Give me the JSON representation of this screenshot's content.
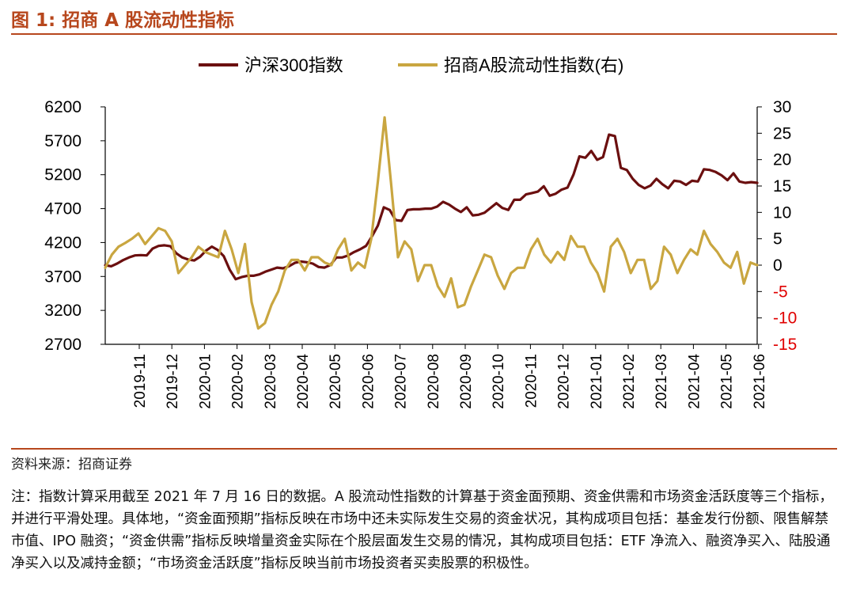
{
  "figure": {
    "title": "图 1: 招商 A 股流动性指标"
  },
  "chart_data": {
    "type": "line",
    "legend_position": "top",
    "series": [
      {
        "name": "沪深300指数",
        "axis": "left",
        "color": "#6b0f0f",
        "values": [
          3865,
          3850,
          3890,
          3940,
          3980,
          4010,
          4015,
          4010,
          4110,
          4150,
          4160,
          4145,
          4040,
          3980,
          3950,
          3935,
          3990,
          4080,
          4140,
          4090,
          4000,
          3800,
          3660,
          3690,
          3710,
          3710,
          3730,
          3770,
          3800,
          3830,
          3820,
          3850,
          3900,
          3920,
          3910,
          3890,
          3840,
          3830,
          3870,
          3980,
          3980,
          4010,
          4060,
          4100,
          4150,
          4290,
          4450,
          4720,
          4680,
          4530,
          4520,
          4680,
          4690,
          4690,
          4700,
          4700,
          4730,
          4800,
          4760,
          4700,
          4650,
          4720,
          4600,
          4610,
          4640,
          4710,
          4780,
          4710,
          4680,
          4830,
          4830,
          4910,
          4930,
          4950,
          5030,
          4890,
          4920,
          4980,
          5010,
          5200,
          5470,
          5450,
          5550,
          5420,
          5460,
          5790,
          5770,
          5300,
          5270,
          5140,
          5050,
          5000,
          5040,
          5140,
          5060,
          5000,
          5110,
          5100,
          5050,
          5110,
          5100,
          5280,
          5270,
          5240,
          5190,
          5120,
          5220,
          5100,
          5080,
          5090,
          5080
        ]
      },
      {
        "name": "招商A股流动性指数(右)",
        "axis": "right",
        "color": "#c9a640",
        "values": [
          -0.5,
          2,
          3.5,
          4.2,
          5,
          6,
          4,
          5.5,
          7,
          6.5,
          4.5,
          -1.5,
          0,
          1.5,
          3.5,
          2.5,
          2,
          1.5,
          6.5,
          3,
          -1.5,
          4,
          -7,
          -12,
          -11,
          -7.5,
          -5,
          -1,
          1,
          1,
          -1,
          1.5,
          1.5,
          0.5,
          0,
          3,
          5,
          -1,
          0.5,
          -0.5,
          5,
          16,
          28,
          15,
          1.5,
          4.5,
          3,
          -3,
          0,
          0,
          -4,
          -6,
          -2.5,
          -8,
          -7.5,
          -4,
          -1,
          2,
          1.5,
          -2,
          -4.5,
          -1.5,
          -0.5,
          -0.5,
          3,
          5,
          2,
          0.5,
          2.5,
          1,
          5.5,
          3.5,
          3.5,
          0.5,
          -1.5,
          -5,
          3.5,
          5,
          2.5,
          -1.5,
          1,
          1,
          -4.5,
          -3,
          3.5,
          2,
          -1.5,
          1,
          3,
          2,
          6.5,
          4,
          2.5,
          0.5,
          -0.5,
          2.5,
          -3.5,
          0.5,
          0
        ]
      }
    ],
    "y_left": {
      "min": 2700,
      "max": 6200,
      "ticks": [
        "6200",
        "5700",
        "5200",
        "4700",
        "4200",
        "3700",
        "3200",
        "2700"
      ]
    },
    "y_right": {
      "min": -15,
      "max": 30,
      "ticks": [
        "30",
        "25",
        "20",
        "15",
        "10",
        "5",
        "0",
        "-5",
        "-10",
        "-15"
      ],
      "negative_color": "#e00000"
    },
    "x_ticks": [
      "2019-11",
      "2019-12",
      "2020-01",
      "2020-02",
      "2020-03",
      "2020-04",
      "2020-05",
      "2020-06",
      "2020-07",
      "2020-08",
      "2020-09",
      "2020-10",
      "2020-11",
      "2020-12",
      "2021-01",
      "2021-02",
      "2021-03",
      "2021-04",
      "2021-05",
      "2021-06"
    ]
  },
  "source": "资料来源：招商证券",
  "note": "注：指数计算采用截至 2021 年 7 月 16 日的数据。A 股流动性指数的计算基于资金面预期、资金供需和市场资金活跃度等三个指标，并进行平滑处理。具体地，“资金面预期”指标反映在市场中还未实际发生交易的资金状况，其构成项目包括：基金发行份额、限售解禁市值、IPO 融资；“资金供需”指标反映增量资金实际在个股层面发生交易的情况，其构成项目包括：ETF 净流入、融资净买入、陆股通净买入以及减持金额；“市场资金活跃度”指标反映当前市场投资者买卖股票的积极性。"
}
